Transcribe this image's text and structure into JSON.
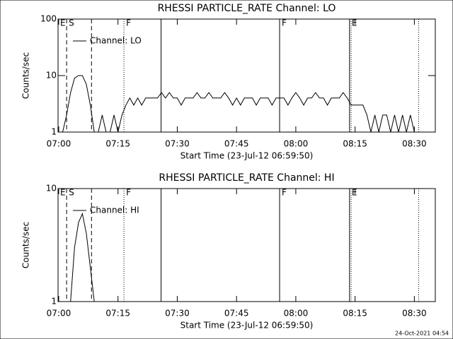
{
  "chart_data": [
    {
      "type": "line",
      "title": "RHESSI PARTICLE_RATE Channel: LO",
      "xlabel": "Start Time (23-Jul-12 06:59:50)",
      "ylabel": "Counts/sec",
      "x": [
        0,
        1,
        2,
        3,
        4,
        5,
        6,
        7,
        8,
        9,
        10,
        11,
        12,
        13,
        14,
        15,
        16,
        17,
        18,
        19,
        20,
        21,
        22,
        23,
        24,
        25,
        26,
        27,
        28,
        29,
        30,
        31,
        32,
        33,
        34,
        35,
        36,
        37,
        38,
        39,
        40,
        41,
        42,
        43,
        44,
        45,
        46,
        47,
        48,
        49,
        50,
        51,
        52,
        53,
        54,
        55,
        56,
        57,
        58,
        59,
        60,
        61,
        62,
        63,
        64,
        65,
        66,
        67,
        68,
        69,
        70,
        71,
        72,
        73,
        74,
        75,
        76,
        77,
        78,
        79,
        80,
        81,
        82,
        83,
        84,
        85,
        86,
        87,
        88,
        89,
        90,
        91
      ],
      "series": [
        {
          "name": "Channel: LO",
          "color": "#000000",
          "values": [
            1,
            1,
            2,
            5,
            9,
            10,
            10,
            7,
            3,
            1,
            1,
            2,
            1,
            1,
            2,
            1,
            2,
            3,
            4,
            3,
            4,
            3,
            4,
            4,
            4,
            4,
            5,
            4,
            5,
            4,
            4,
            3,
            4,
            4,
            4,
            5,
            4,
            4,
            5,
            4,
            4,
            4,
            5,
            4,
            3,
            4,
            3,
            4,
            4,
            4,
            3,
            4,
            4,
            4,
            3,
            4,
            4,
            4,
            3,
            4,
            5,
            4,
            3,
            4,
            4,
            5,
            4,
            4,
            3,
            4,
            4,
            4,
            5,
            4,
            3,
            3,
            3,
            3,
            2,
            1,
            2,
            1,
            2,
            2,
            1,
            2,
            1,
            2,
            1,
            2,
            1,
            1
          ]
        }
      ],
      "xlim": [
        -0.17,
        95.3
      ],
      "xticks": [
        {
          "value": 0,
          "label": "07:00"
        },
        {
          "value": 15,
          "label": "07:15"
        },
        {
          "value": 30,
          "label": "07:30"
        },
        {
          "value": 45,
          "label": "07:45"
        },
        {
          "value": 60,
          "label": "08:00"
        },
        {
          "value": 75,
          "label": "08:15"
        },
        {
          "value": 90,
          "label": "08:30"
        }
      ],
      "ylim": [
        1,
        100
      ],
      "yticks": [
        1,
        10,
        100
      ],
      "log_y": true,
      "legend": "upper left",
      "annotations": [
        {
          "x": -0.17,
          "style": "solid",
          "label": "E"
        },
        {
          "x": 2.0,
          "style": "dashed",
          "label": "S"
        },
        {
          "x": 8.3,
          "style": "dashed"
        },
        {
          "x": 16.5,
          "style": "dotted",
          "label": "F"
        },
        {
          "x": 25.9,
          "style": "solid"
        },
        {
          "x": 55.9,
          "style": "solid",
          "label": "F"
        },
        {
          "x": 73.6,
          "style": "solid",
          "label": "E"
        },
        {
          "x": 74.0,
          "style": "dotted"
        },
        {
          "x": 91.1,
          "style": "dotted"
        }
      ]
    },
    {
      "type": "line",
      "title": "RHESSI PARTICLE_RATE Channel: HI",
      "xlabel": "Start Time (23-Jul-12 06:59:50)",
      "ylabel": "Counts/sec",
      "x": [
        0,
        1,
        2,
        3,
        4,
        5,
        6,
        7,
        8,
        9,
        10,
        11,
        12,
        13,
        14,
        15,
        16,
        17,
        18,
        19,
        20,
        21,
        22,
        23,
        24,
        25,
        26,
        27,
        28,
        29,
        30,
        31,
        32,
        33,
        34,
        35,
        36,
        37,
        38,
        39,
        40,
        41,
        42,
        43,
        44,
        45,
        46,
        47,
        48,
        49,
        50,
        51,
        52,
        53,
        54,
        55,
        56,
        57,
        58,
        59,
        60,
        61,
        62,
        63,
        64,
        65,
        66,
        67,
        68,
        69,
        70,
        71,
        72,
        73,
        74,
        75,
        76,
        77,
        78,
        79,
        80,
        81,
        82,
        83,
        84,
        85,
        86,
        87,
        88,
        89,
        90,
        91
      ],
      "series": [
        {
          "name": "Channel: HI",
          "color": "#000000",
          "values": [
            1,
            1,
            1,
            1,
            3,
            5,
            6,
            4,
            2,
            1,
            1,
            1,
            1,
            1,
            1,
            1,
            1,
            1,
            1,
            1,
            1,
            1,
            1,
            1,
            1,
            1,
            1,
            1,
            1,
            1,
            1,
            1,
            1,
            1,
            1,
            1,
            1,
            1,
            1,
            1,
            1,
            1,
            1,
            1,
            1,
            1,
            1,
            1,
            1,
            1,
            1,
            1,
            1,
            1,
            1,
            1,
            1,
            1,
            1,
            1,
            1,
            1,
            1,
            1,
            1,
            1,
            1,
            1,
            1,
            1,
            1,
            1,
            1,
            1,
            1,
            1,
            1,
            1,
            1,
            1,
            1,
            1,
            1,
            1,
            1,
            1,
            1,
            1,
            1,
            1,
            1,
            1
          ]
        }
      ],
      "xlim": [
        -0.17,
        95.3
      ],
      "xticks": [
        {
          "value": 0,
          "label": "07:00"
        },
        {
          "value": 15,
          "label": "07:15"
        },
        {
          "value": 30,
          "label": "07:30"
        },
        {
          "value": 45,
          "label": "07:45"
        },
        {
          "value": 60,
          "label": "08:00"
        },
        {
          "value": 75,
          "label": "08:15"
        },
        {
          "value": 90,
          "label": "08:30"
        }
      ],
      "ylim": [
        1,
        10
      ],
      "yticks": [
        1,
        10
      ],
      "log_y": true,
      "legend": "upper left",
      "annotations": [
        {
          "x": -0.17,
          "style": "solid",
          "label": "E"
        },
        {
          "x": 2.0,
          "style": "dashed",
          "label": "S"
        },
        {
          "x": 8.3,
          "style": "dashed"
        },
        {
          "x": 16.5,
          "style": "dotted",
          "label": "F"
        },
        {
          "x": 25.9,
          "style": "solid"
        },
        {
          "x": 55.9,
          "style": "solid",
          "label": "F"
        },
        {
          "x": 73.6,
          "style": "solid",
          "label": "E"
        },
        {
          "x": 74.0,
          "style": "dotted"
        },
        {
          "x": 91.1,
          "style": "dotted"
        }
      ]
    }
  ],
  "footer": "24-Oct-2021 04:54"
}
